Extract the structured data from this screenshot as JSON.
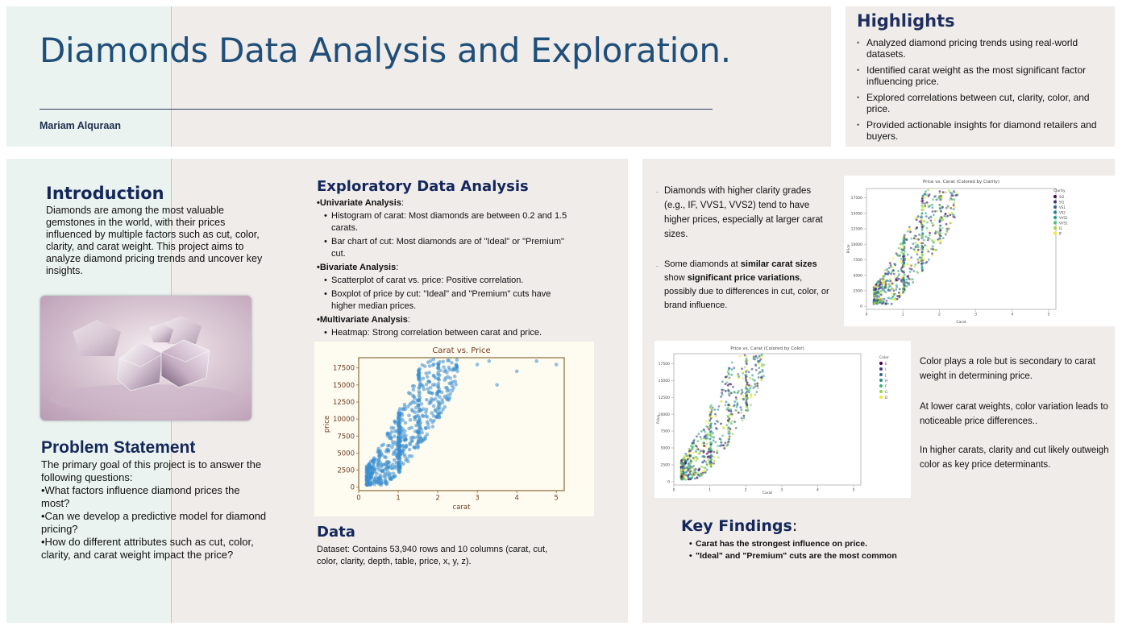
{
  "header": {
    "title": "Diamonds Data Analysis and Exploration.",
    "author": "Mariam Alquraan"
  },
  "highlights": {
    "title": "Highlights",
    "items": [
      "Analyzed diamond pricing trends using real-world datasets.",
      "Identified carat weight as the most significant factor influencing price.",
      "Explored correlations between cut, clarity, color, and price.",
      "Provided actionable insights for diamond retailers and buyers."
    ]
  },
  "introduction": {
    "title": "Introduction",
    "text": "Diamonds are among the most valuable gemstones in the world, with their prices influenced by multiple factors such as cut, color, clarity, and carat weight. This project aims to analyze diamond pricing trends and uncover key insights."
  },
  "problem": {
    "title": "Problem Statement",
    "lines": [
      "The primary goal of this project is to answer the following questions:",
      "•What factors influence diamond prices the most?",
      "•Can we develop a predictive model for diamond pricing?",
      "•How do different attributes such as cut, color, clarity, and carat weight impact the price?"
    ]
  },
  "eda": {
    "title": "Exploratory Data Analysis",
    "groups": [
      {
        "head": "•Univariate Analysis",
        "colon": ":",
        "items": [
          "Histogram of carat: Most diamonds are between 0.2 and 1.5 carats.",
          "Bar chart of cut: Most diamonds are of \"Ideal\" or \"Premium\" cut."
        ]
      },
      {
        "head": "•Bivariate Analysis",
        "colon": ":",
        "items": [
          "Scatterplot of carat vs. price: Positive correlation.",
          "Boxplot of price by cut: \"Ideal\" and \"Premium\" cuts have higher median prices."
        ]
      },
      {
        "head": "•Multivariate Analysis",
        "colon": ":",
        "items": [
          "Heatmap: Strong correlation between carat and price."
        ]
      }
    ]
  },
  "data_section": {
    "title": "Data",
    "text": "Dataset: Contains 53,940 rows and 10 columns (carat, cut, color, clarity, depth, table, price, x, y, z)."
  },
  "findings": {
    "clarity_1": "Diamonds with higher clarity grades (e.g., IF, VVS1, VVS2) tend to have higher prices, especially at larger carat sizes.",
    "clarity_2_a": "Some diamonds at ",
    "clarity_2_b": "similar carat sizes",
    "clarity_2_c": " show ",
    "clarity_2_d": "significant price variations",
    "clarity_2_e": ", possibly due to differences in cut, color, or brand influence.",
    "color_1": "Color plays a role but is secondary to carat weight in determining price.",
    "color_2": "At lower carat weights, color variation leads to noticeable price differences..",
    "color_3": "In higher carats, clarity and cut likely outweigh color as key price determinants."
  },
  "key_findings": {
    "title": "Key Findings",
    "colon": ":",
    "items": [
      "Carat has the strongest influence on price.",
      "\"Ideal\" and \"Premium\" cuts are the most common"
    ]
  },
  "chart_data": [
    {
      "type": "scatter",
      "title": "Carat vs. Price",
      "xlabel": "carat",
      "ylabel": "price",
      "xlim": [
        0,
        5.2
      ],
      "ylim": [
        -500,
        19000
      ],
      "xticks": [
        0,
        1,
        2,
        3,
        4,
        5
      ],
      "yticks": [
        0,
        2500,
        5000,
        7500,
        10000,
        12500,
        15000,
        17500
      ],
      "color": "#3a8ed0",
      "points": [
        [
          0.23,
          326
        ],
        [
          0.3,
          450
        ],
        [
          0.35,
          600
        ],
        [
          0.4,
          800
        ],
        [
          0.5,
          1200
        ],
        [
          0.7,
          2700
        ],
        [
          0.75,
          2900
        ],
        [
          0.9,
          4000
        ],
        [
          1.0,
          4500
        ],
        [
          1.0,
          6500
        ],
        [
          1.01,
          9000
        ],
        [
          1.1,
          5000
        ],
        [
          1.2,
          7000
        ],
        [
          1.5,
          8000
        ],
        [
          1.5,
          12000
        ],
        [
          1.6,
          15000
        ],
        [
          1.7,
          11000
        ],
        [
          2.0,
          14000
        ],
        [
          2.0,
          17500
        ],
        [
          2.2,
          16000
        ],
        [
          2.5,
          17000
        ],
        [
          3.0,
          18000
        ],
        [
          3.3,
          18500
        ],
        [
          3.5,
          15000
        ],
        [
          4.0,
          17000
        ],
        [
          4.5,
          18500
        ],
        [
          5.0,
          18000
        ]
      ]
    },
    {
      "type": "scatter",
      "title": "Price vs. Carat (Colored by Clarity)",
      "xlabel": "Carat",
      "ylabel": "Price",
      "legend_title": "Clarity",
      "legend_position": "top-right",
      "xlim": [
        0,
        5.2
      ],
      "ylim": [
        -500,
        19000
      ],
      "xticks": [
        0,
        1,
        2,
        3,
        4,
        5
      ],
      "yticks": [
        0,
        2500,
        5000,
        7500,
        10000,
        12500,
        15000,
        17500
      ],
      "series": [
        {
          "name": "SI2",
          "color": "#440154"
        },
        {
          "name": "SI1",
          "color": "#46327e"
        },
        {
          "name": "VS1",
          "color": "#365c8d"
        },
        {
          "name": "VS2",
          "color": "#277f8e"
        },
        {
          "name": "VVS2",
          "color": "#1fa187"
        },
        {
          "name": "VVS1",
          "color": "#4ac16d"
        },
        {
          "name": "I1",
          "color": "#a0da39"
        },
        {
          "name": "IF",
          "color": "#fde725"
        }
      ]
    },
    {
      "type": "scatter",
      "title": "Price vs. Carat (Colored by Color)",
      "xlabel": "Carat",
      "ylabel": "Price",
      "legend_title": "Color",
      "legend_position": "top-right",
      "xlim": [
        0,
        5.2
      ],
      "ylim": [
        -500,
        19000
      ],
      "xticks": [
        0,
        1,
        2,
        3,
        4,
        5
      ],
      "yticks": [
        0,
        2500,
        5000,
        7500,
        10000,
        12500,
        15000,
        17500
      ],
      "series": [
        {
          "name": "E",
          "color": "#440154"
        },
        {
          "name": "I",
          "color": "#443983"
        },
        {
          "name": "J",
          "color": "#31688e"
        },
        {
          "name": "H",
          "color": "#21918c"
        },
        {
          "name": "F",
          "color": "#35b779"
        },
        {
          "name": "G",
          "color": "#90d743"
        },
        {
          "name": "D",
          "color": "#fde725"
        }
      ]
    }
  ]
}
